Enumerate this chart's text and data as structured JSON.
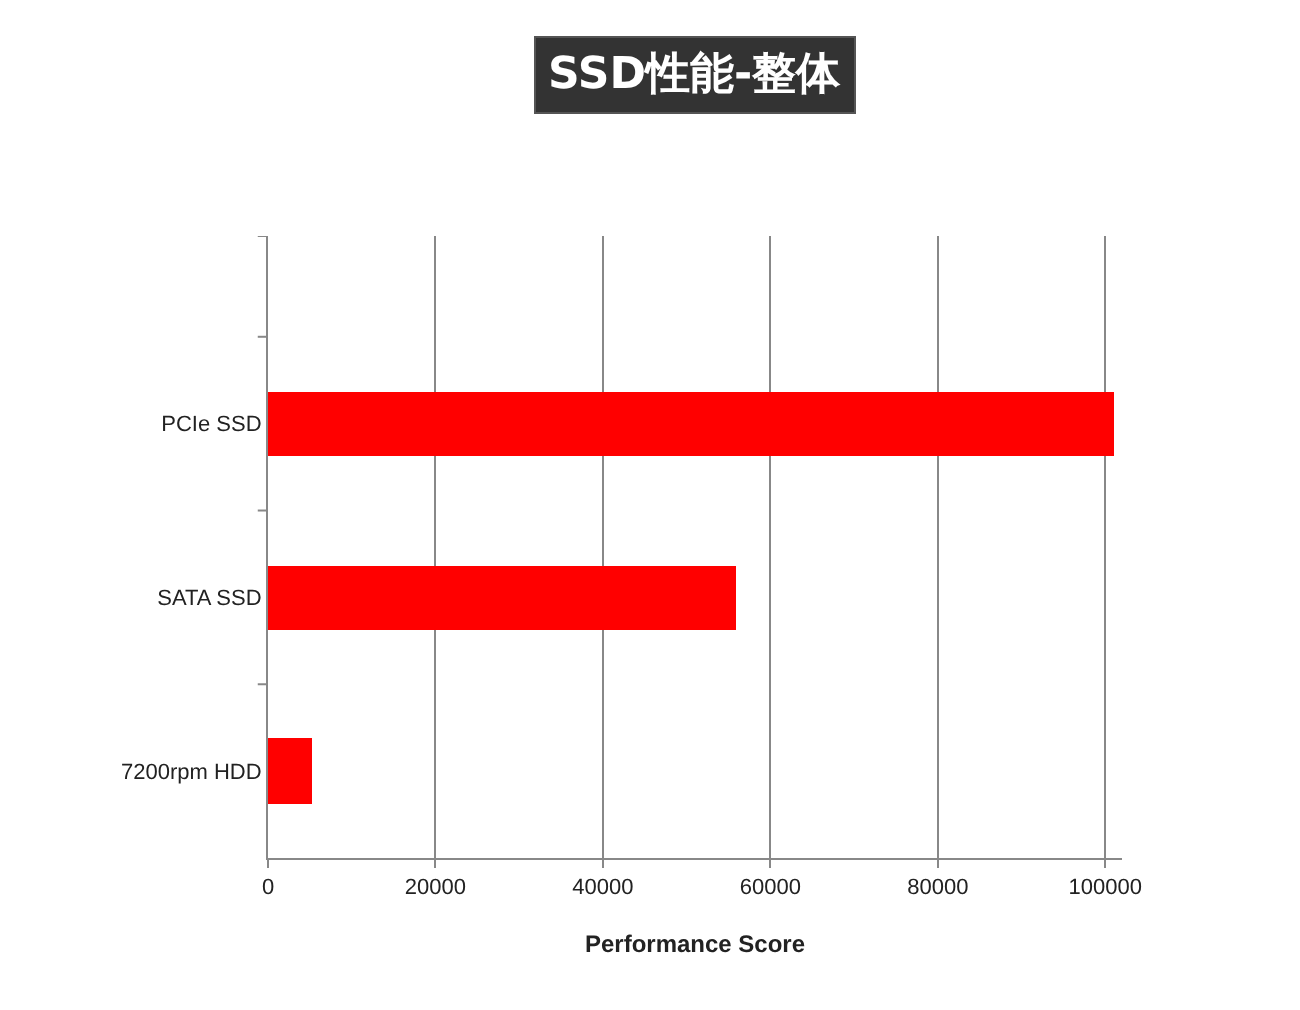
{
  "chart_data": {
    "type": "bar",
    "orientation": "horizontal",
    "title": "SSD性能-整体",
    "xlabel": "Performance Score",
    "categories": [
      "PCIe SSD",
      "SATA SSD",
      "7200rpm HDD"
    ],
    "values": [
      101000,
      56000,
      5200
    ],
    "color": "#ff0000",
    "xlim": [
      0,
      102000
    ],
    "xticks": [
      0,
      20000,
      40000,
      60000,
      80000,
      100000
    ],
    "grid": "x",
    "legend": false
  }
}
